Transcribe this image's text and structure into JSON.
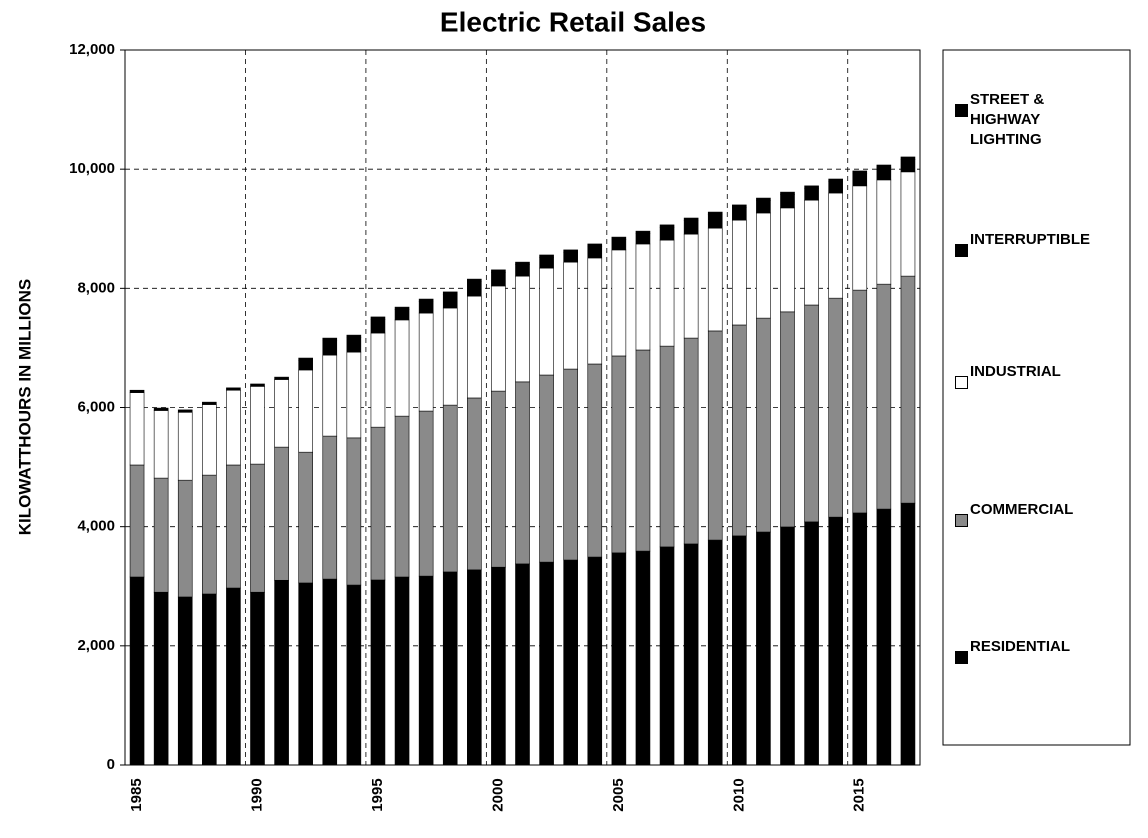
{
  "chart_data": {
    "type": "stacked_bar",
    "title": "Electric Retail Sales",
    "y_label": "KILOWATTHOURS IN MILLIONS",
    "categories": [
      "1985",
      null,
      null,
      null,
      null,
      "1990",
      null,
      null,
      null,
      null,
      "1995",
      null,
      null,
      null,
      null,
      "2000",
      null,
      null,
      null,
      null,
      "2005",
      null,
      null,
      null,
      null,
      "2010",
      null,
      null,
      null,
      null,
      "2015",
      null,
      null
    ],
    "series": [
      {
        "name": "RESIDENTIAL",
        "color": "#000000",
        "values": [
          3155,
          2900,
          2820,
          2870,
          2970,
          2900,
          3100,
          3055,
          3120,
          3020,
          3105,
          3155,
          3170,
          3240,
          3275,
          3320,
          3375,
          3405,
          3440,
          3490,
          3560,
          3590,
          3660,
          3710,
          3775,
          3845,
          3910,
          3995,
          4080,
          4160,
          4230,
          4295,
          4395
        ]
      },
      {
        "name": "COMMERCIAL",
        "color": "#8a8a8a",
        "values": [
          1880,
          1915,
          1960,
          1995,
          2065,
          2150,
          2235,
          2195,
          2400,
          2470,
          2565,
          2700,
          2770,
          2800,
          2885,
          2955,
          3055,
          3140,
          3205,
          3240,
          3305,
          3375,
          3370,
          3455,
          3510,
          3540,
          3590,
          3610,
          3640,
          3675,
          3740,
          3775,
          3810
        ]
      },
      {
        "name": "INDUSTRIAL",
        "color": "#ffffff",
        "values": [
          1215,
          1135,
          1140,
          1185,
          1255,
          1305,
          1135,
          1380,
          1360,
          1440,
          1580,
          1615,
          1645,
          1630,
          1710,
          1765,
          1775,
          1795,
          1795,
          1780,
          1780,
          1780,
          1780,
          1745,
          1725,
          1760,
          1765,
          1745,
          1760,
          1765,
          1750,
          1750,
          1750
        ]
      },
      {
        "name": "INTERRUPTIBLE",
        "color": "#000000",
        "values": [
          0,
          0,
          0,
          0,
          0,
          0,
          0,
          160,
          245,
          245,
          230,
          175,
          195,
          230,
          245,
          230,
          195,
          180,
          165,
          195,
          175,
          175,
          215,
          230,
          230,
          215,
          210,
          225,
          200,
          195,
          210,
          210,
          210
        ]
      },
      {
        "name": "STREET & HIGHWAY LIGHTING",
        "color": "#000000",
        "values": [
          40,
          40,
          40,
          40,
          40,
          40,
          40,
          40,
          40,
          40,
          40,
          40,
          40,
          40,
          40,
          40,
          40,
          40,
          40,
          40,
          40,
          40,
          40,
          40,
          40,
          40,
          40,
          40,
          40,
          40,
          40,
          40,
          40
        ]
      }
    ],
    "ylim": [
      0,
      12000
    ],
    "yticks": [
      0,
      {
        "value": 2000,
        "label": "2,000"
      },
      {
        "value": 4000,
        "label": "4,000"
      },
      {
        "value": 6000,
        "label": "6,000"
      },
      {
        "value": 8000,
        "label": "8,000"
      },
      {
        "value": 10000,
        "label": "10,000"
      },
      {
        "value": 12000,
        "label": "12,000"
      }
    ],
    "grid": true,
    "legend": "right"
  }
}
